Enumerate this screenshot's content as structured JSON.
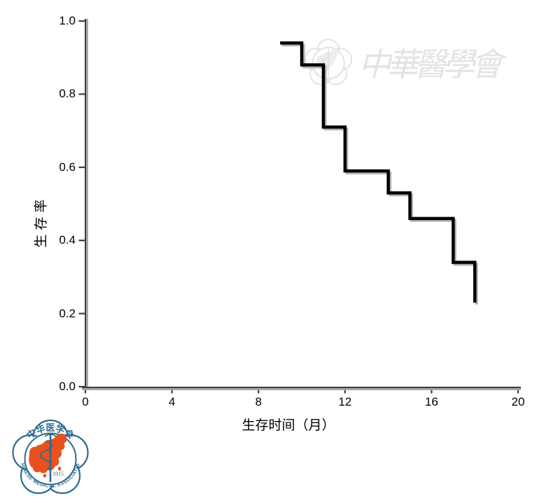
{
  "chart_data": {
    "type": "line",
    "subtype": "kaplan-meier-step",
    "title": "",
    "xlabel": "生存时间（月）",
    "ylabel": "生存率",
    "xlim": [
      0,
      20
    ],
    "ylim": [
      0.0,
      1.0
    ],
    "grid": false,
    "legend": false,
    "x_ticks": {
      "values": [
        0,
        4,
        8,
        12,
        16,
        20
      ],
      "labels": [
        "0",
        "4",
        "8",
        "12",
        "16",
        "20"
      ]
    },
    "y_ticks": {
      "values": [
        0.0,
        0.2,
        0.4,
        0.6,
        0.8,
        1.0
      ],
      "labels": [
        "0.0",
        "0.2",
        "0.4",
        "0.6",
        "0.8",
        "1.0"
      ]
    },
    "series": [
      {
        "name": "survival-curve",
        "steps_x_months": [
          9,
          10,
          11,
          12,
          14,
          15,
          17,
          18
        ],
        "steps_survival": [
          0.94,
          0.88,
          0.71,
          0.59,
          0.53,
          0.46,
          0.34,
          0.23
        ],
        "color": "#000000",
        "shadow_color": "#b2b2b2"
      }
    ]
  },
  "watermark": {
    "text": "中華醫學會",
    "color": "#e3e3e3",
    "seal": "chinese-medical-association-seal"
  },
  "logo": {
    "top_text": "中华医学会",
    "bottom_text": "CHINESE MEDICAL ASSOCIATION",
    "year": "1915",
    "blue": "#2e6b90",
    "red": "#e8501e"
  },
  "colors": {
    "background": "#ffffff",
    "axis_dark": "#3d3d3d",
    "axis_light": "#a8a8a8",
    "tick": "#3d3d3d",
    "label_text": "#000000"
  }
}
